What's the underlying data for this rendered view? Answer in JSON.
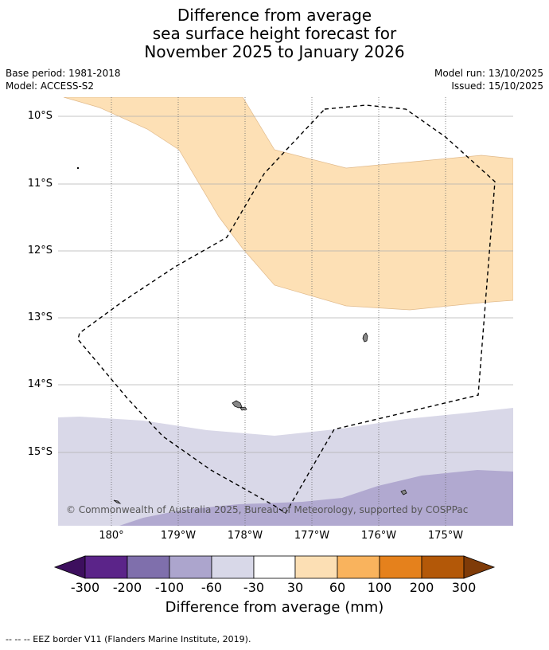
{
  "title": {
    "line1": "Difference from average",
    "line2": "sea surface height forecast for",
    "line3": "November 2025 to January 2026"
  },
  "meta": {
    "base_period": "Base period: 1981-2018",
    "model": "Model: ACCESS-S2",
    "model_run": "Model run: 13/10/2025",
    "issued": "Issued: 15/10/2025"
  },
  "map": {
    "lat_labels": [
      "10°S",
      "11°S",
      "12°S",
      "13°S",
      "14°S",
      "15°S"
    ],
    "lon_labels": [
      "180°",
      "179°W",
      "178°W",
      "177°W",
      "176°W",
      "175°W"
    ],
    "credit": "© Commonwealth of Australia 2025, Bureau of Meteorology, supported by COSPPac",
    "anomaly_classes": {
      "light_orange": "30 to 60",
      "pale_lavender": "-60 to -30",
      "lavender": "-100 to -60"
    }
  },
  "colorbar": {
    "ticks": [
      "-300",
      "-200",
      "-100",
      "-60",
      "-30",
      "30",
      "60",
      "100",
      "200",
      "300"
    ],
    "colors": [
      "#3d0f5e",
      "#5b2489",
      "#7f6fac",
      "#aca5cd",
      "#d8d8e8",
      "#ffffff",
      "#fcdfb4",
      "#f9b35d",
      "#e5811c",
      "#b35808",
      "#7f3b08"
    ],
    "label": "Difference from average (mm)"
  },
  "footer": "--  --  -- EEZ border V11 (Flanders Marine Institute, 2019)."
}
